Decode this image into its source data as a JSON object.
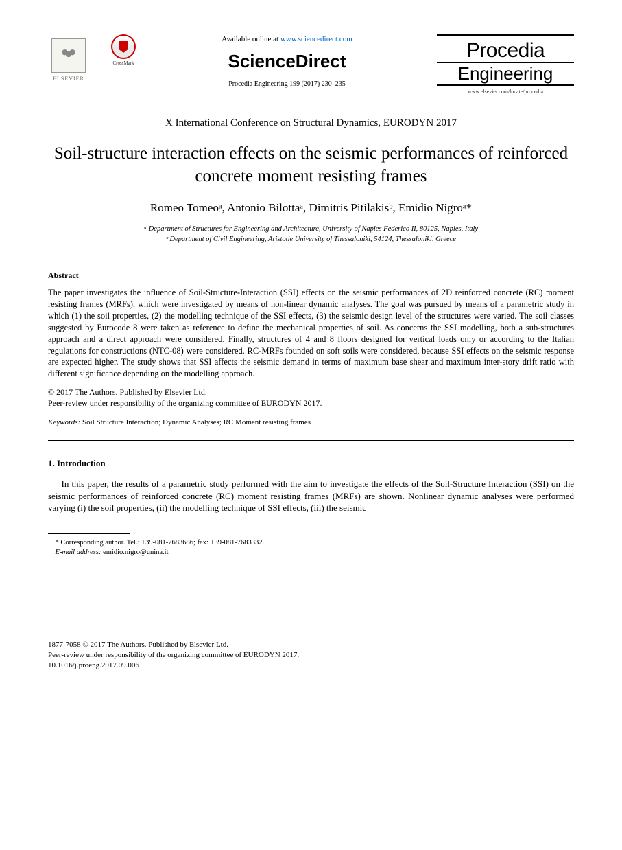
{
  "header": {
    "elsevier_label": "ELSEVIER",
    "crossmark_label": "CrossMark",
    "available_text": "Available online at ",
    "available_url": "www.sciencedirect.com",
    "sciencedirect": "ScienceDirect",
    "citation": "Procedia Engineering 199 (2017) 230–235",
    "journal_name_top": "Procedia",
    "journal_name_bottom": "Engineering",
    "journal_url": "www.elsevier.com/locate/procedia"
  },
  "conference": "X International Conference on Structural Dynamics, EURODYN 2017",
  "title": "Soil-structure interaction effects on the seismic performances of reinforced concrete moment resisting frames",
  "authors_html": "Romeo Tomeoᵃ, Antonio Bilottaᵃ, Dimitris Pitilakisᵇ, Emidio Nigroᵃ*",
  "affiliations": {
    "a": "ᵃ Department of Structures for Engineering and Architecture, University of Naples Federico II, 80125, Naples, Italy",
    "b": "ᵇ Department of Civil Engineering, Aristotle University of Thessaloniki, 54124, Thessaloniki, Greece"
  },
  "abstract": {
    "heading": "Abstract",
    "text": "The paper investigates the influence of Soil-Structure-Interaction (SSI) effects on the seismic performances of 2D reinforced concrete (RC) moment resisting frames (MRFs), which were investigated by means of non-linear dynamic analyses. The goal was pursued by means of a parametric study in which (1) the soil properties, (2) the modelling technique of the SSI effects, (3) the seismic design level of the structures were varied. The soil classes suggested by Eurocode 8 were taken as reference to define the mechanical properties of soil. As concerns the SSI modelling, both a sub-structures approach and a direct approach were considered. Finally, structures of 4 and 8 floors designed for vertical loads only or according to the Italian regulations for constructions (NTC-08) were considered. RC-MRFs founded on soft soils were considered, because SSI effects on the seismic response are expected higher. The study shows that SSI affects the seismic demand in terms of maximum base shear and maximum inter-story drift ratio with different significance depending on the modelling approach."
  },
  "copyright": {
    "line1": "© 2017 The Authors. Published by Elsevier Ltd.",
    "line2": "Peer-review under responsibility of the organizing committee of EURODYN 2017."
  },
  "keywords": {
    "label": "Keywords:",
    "text": " Soil Structure Interaction; Dynamic Analyses; RC Moment resisting frames"
  },
  "section1": {
    "heading": "1. Introduction",
    "para1": "In this paper, the results of a parametric study performed with the aim to investigate the effects of the Soil-Structure Interaction (SSI) on the seismic performances of reinforced concrete (RC) moment resisting frames (MRFs) are shown. Nonlinear dynamic analyses were performed varying (i) the soil properties, (ii) the modelling technique of SSI effects, (iii) the seismic"
  },
  "footnote": {
    "corresponding": "* Corresponding author. Tel.: +39-081-7683686; fax: +39-081-7683332.",
    "email_label": "E-mail address:",
    "email": " emidio.nigro@unina.it"
  },
  "footer": {
    "issn": "1877-7058 © 2017 The Authors. Published by Elsevier Ltd.",
    "peer": "Peer-review under responsibility of the organizing committee of EURODYN 2017.",
    "doi": "10.1016/j.proeng.2017.09.006"
  }
}
